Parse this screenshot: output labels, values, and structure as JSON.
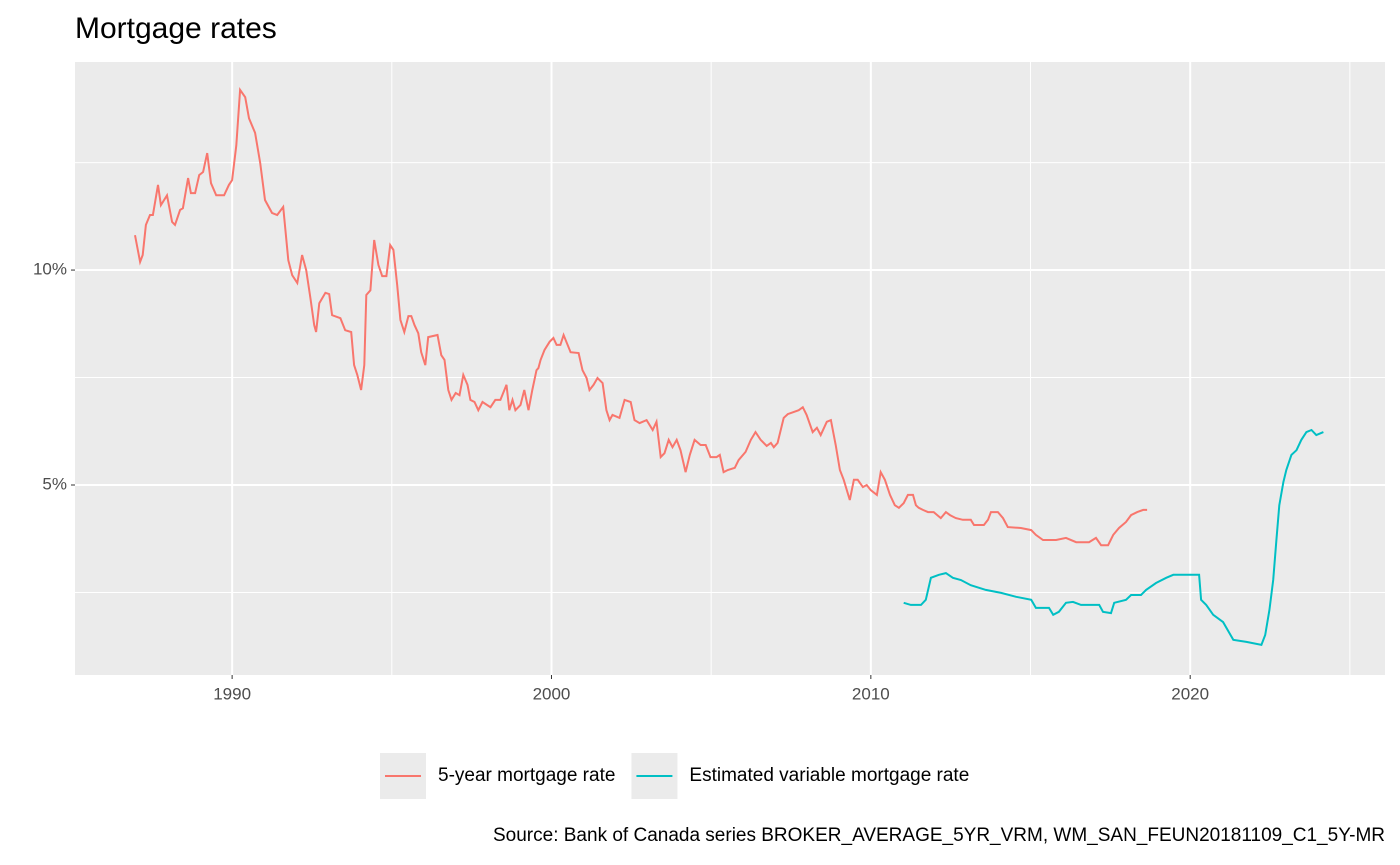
{
  "chart_data": {
    "type": "line",
    "title": "Mortgage rates",
    "caption": "Source: Bank of Canada series BROKER_AVERAGE_5YR_VRM, WM_SAN_FEUN20181109_C1_5Y-MR",
    "xlim": [
      1985.08,
      2026.1
    ],
    "xticks": [
      1990,
      2000,
      2010,
      2020
    ],
    "ylim": [
      0.58,
      14.84
    ],
    "yticks": [
      {
        "value": 5,
        "label": "5%"
      },
      {
        "value": 10,
        "label": "10%"
      }
    ],
    "grid": true,
    "legend": "bottom",
    "series": [
      {
        "name": "5-year mortgage rate",
        "color": "#f8766d",
        "x": [
          1986.96,
          1987.12,
          1987.2,
          1987.3,
          1987.43,
          1987.52,
          1987.68,
          1987.77,
          1987.96,
          1988.12,
          1988.21,
          1988.37,
          1988.46,
          1988.62,
          1988.71,
          1988.84,
          1988.97,
          1989.09,
          1989.22,
          1989.34,
          1989.5,
          1989.75,
          1989.9,
          1990,
          1990.13,
          1990.25,
          1990.41,
          1990.53,
          1990.72,
          1990.88,
          1991.03,
          1991.25,
          1991.41,
          1991.6,
          1991.76,
          1991.88,
          1992.04,
          1992.19,
          1992.32,
          1992.45,
          1992.57,
          1992.63,
          1992.73,
          1992.92,
          1993.04,
          1993.13,
          1993.39,
          1993.54,
          1993.73,
          1993.82,
          1993.92,
          1994.04,
          1994.14,
          1994.2,
          1994.33,
          1994.45,
          1994.58,
          1994.7,
          1994.83,
          1994.95,
          1995.05,
          1995.17,
          1995.27,
          1995.39,
          1995.52,
          1995.61,
          1995.71,
          1995.83,
          1995.92,
          1996.05,
          1996.14,
          1996.43,
          1996.55,
          1996.65,
          1996.77,
          1996.87,
          1997,
          1997.12,
          1997.24,
          1997.37,
          1997.46,
          1997.59,
          1997.71,
          1997.84,
          1998.09,
          1998.24,
          1998.4,
          1998.59,
          1998.68,
          1998.78,
          1998.87,
          1999.03,
          1999.15,
          1999.28,
          1999.4,
          1999.53,
          1999.59,
          1999.66,
          1999.78,
          1999.94,
          2000.06,
          2000.16,
          2000.28,
          2000.38,
          2000.6,
          2000.85,
          2000.97,
          2001.1,
          2001.19,
          2001.32,
          2001.44,
          2001.6,
          2001.72,
          2001.82,
          2001.91,
          2002.13,
          2002.29,
          2002.48,
          2002.6,
          2002.76,
          2002.98,
          2003.17,
          2003.29,
          2003.42,
          2003.54,
          2003.67,
          2003.79,
          2003.92,
          2004.04,
          2004.2,
          2004.33,
          2004.48,
          2004.67,
          2004.83,
          2004.98,
          2005.17,
          2005.27,
          2005.39,
          2005.52,
          2005.74,
          2005.86,
          2006.08,
          2006.24,
          2006.39,
          2006.55,
          2006.74,
          2006.87,
          2006.96,
          2007.08,
          2007.27,
          2007.4,
          2007.59,
          2007.74,
          2007.87,
          2007.99,
          2008.18,
          2008.31,
          2008.43,
          2008.62,
          2008.75,
          2008.9,
          2009.03,
          2009.15,
          2009.34,
          2009.47,
          2009.59,
          2009.75,
          2009.87,
          2010,
          2010.19,
          2010.31,
          2010.44,
          2010.6,
          2010.75,
          2010.88,
          2011.03,
          2011.16,
          2011.32,
          2011.41,
          2011.5,
          2011.63,
          2011.79,
          2011.97,
          2012.19,
          2012.35,
          2012.48,
          2012.66,
          2012.88,
          2013.13,
          2013.23,
          2013.54,
          2013.67,
          2013.76,
          2013.98,
          2014.14,
          2014.29,
          2014.7,
          2015.02,
          2015.17,
          2015.39,
          2015.8,
          2016.11,
          2016.43,
          2016.83,
          2017.05,
          2017.21,
          2017.43,
          2017.59,
          2017.77,
          2017.99,
          2018.15,
          2018.34,
          2018.53,
          2018.65
        ],
        "values": [
          10.81,
          10.19,
          10.35,
          11.05,
          11.28,
          11.28,
          11.98,
          11.51,
          11.74,
          11.12,
          11.05,
          11.4,
          11.44,
          12.14,
          11.79,
          11.79,
          12.21,
          12.28,
          12.72,
          12.02,
          11.74,
          11.74,
          11.98,
          12.09,
          12.9,
          14.19,
          14.02,
          13.53,
          13.19,
          12.49,
          11.63,
          11.33,
          11.28,
          11.47,
          10.23,
          9.88,
          9.7,
          10.35,
          10,
          9.35,
          8.72,
          8.56,
          9.23,
          9.47,
          9.44,
          8.95,
          8.88,
          8.6,
          8.56,
          7.79,
          7.56,
          7.21,
          7.79,
          9.42,
          9.53,
          10.7,
          10.12,
          9.86,
          9.86,
          10.58,
          10.47,
          9.65,
          8.84,
          8.56,
          8.93,
          8.93,
          8.72,
          8.53,
          8.09,
          7.79,
          8.44,
          8.49,
          8.02,
          7.91,
          7.21,
          6.98,
          7.14,
          7.09,
          7.56,
          7.33,
          6.98,
          6.93,
          6.74,
          6.93,
          6.81,
          6.98,
          6.98,
          7.33,
          6.74,
          6.98,
          6.74,
          6.86,
          7.21,
          6.74,
          7.21,
          7.67,
          7.72,
          7.91,
          8.14,
          8.33,
          8.42,
          8.26,
          8.26,
          8.49,
          8.09,
          8.07,
          7.67,
          7.49,
          7.21,
          7.33,
          7.49,
          7.37,
          6.74,
          6.51,
          6.63,
          6.56,
          6.98,
          6.93,
          6.51,
          6.44,
          6.51,
          6.28,
          6.47,
          5.65,
          5.74,
          6.05,
          5.88,
          6.05,
          5.81,
          5.3,
          5.7,
          6.05,
          5.93,
          5.93,
          5.65,
          5.65,
          5.7,
          5.3,
          5.35,
          5.4,
          5.58,
          5.77,
          6.05,
          6.23,
          6.05,
          5.91,
          5.98,
          5.88,
          5.98,
          6.56,
          6.65,
          6.7,
          6.74,
          6.81,
          6.63,
          6.23,
          6.33,
          6.16,
          6.47,
          6.51,
          5.93,
          5.35,
          5.12,
          4.65,
          5.12,
          5.12,
          4.95,
          5,
          4.88,
          4.77,
          5.3,
          5.12,
          4.77,
          4.53,
          4.47,
          4.58,
          4.77,
          4.77,
          4.53,
          4.47,
          4.42,
          4.37,
          4.37,
          4.23,
          4.37,
          4.3,
          4.23,
          4.19,
          4.19,
          4.07,
          4.07,
          4.19,
          4.37,
          4.37,
          4.23,
          4.02,
          4,
          3.95,
          3.84,
          3.72,
          3.72,
          3.77,
          3.67,
          3.67,
          3.77,
          3.6,
          3.6,
          3.84,
          4,
          4.14,
          4.3,
          4.37,
          4.42,
          4.42
        ]
      },
      {
        "name": "Estimated variable mortgage rate",
        "color": "#00bfc4",
        "x": [
          2011.03,
          2011.25,
          2011.57,
          2011.72,
          2011.88,
          2012.13,
          2012.35,
          2012.57,
          2012.82,
          2013.13,
          2013.6,
          2014.08,
          2014.55,
          2015.02,
          2015.17,
          2015.58,
          2015.71,
          2015.89,
          2016.11,
          2016.33,
          2016.58,
          2017.15,
          2017.27,
          2017.52,
          2017.62,
          2017.99,
          2018.15,
          2018.46,
          2018.62,
          2018.93,
          2019.25,
          2019.47,
          2020.28,
          2020.34,
          2020.5,
          2020.72,
          2021.03,
          2021.35,
          2021.76,
          2022.23,
          2022.35,
          2022.48,
          2022.6,
          2022.7,
          2022.79,
          2022.92,
          2023.01,
          2023.17,
          2023.33,
          2023.48,
          2023.64,
          2023.8,
          2023.95,
          2024.17
        ],
        "values": [
          2.26,
          2.21,
          2.21,
          2.33,
          2.84,
          2.91,
          2.95,
          2.84,
          2.79,
          2.67,
          2.56,
          2.49,
          2.4,
          2.33,
          2.14,
          2.14,
          1.98,
          2.05,
          2.26,
          2.28,
          2.21,
          2.21,
          2.05,
          2.02,
          2.26,
          2.33,
          2.44,
          2.44,
          2.56,
          2.72,
          2.84,
          2.91,
          2.91,
          2.33,
          2.21,
          1.98,
          1.81,
          1.4,
          1.35,
          1.28,
          1.51,
          2.09,
          2.79,
          3.72,
          4.53,
          5.07,
          5.35,
          5.7,
          5.81,
          6.05,
          6.23,
          6.28,
          6.16,
          6.23
        ]
      }
    ]
  }
}
